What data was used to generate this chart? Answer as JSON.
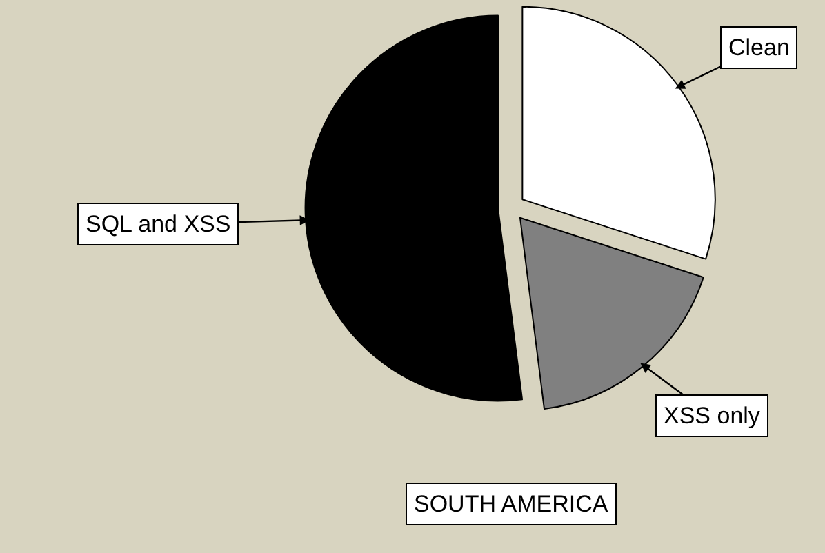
{
  "chart_data": {
    "type": "pie",
    "title": "SOUTH AMERICA",
    "categories": [
      "Clean",
      "XSS only",
      "SQL and XSS"
    ],
    "values": [
      30,
      18,
      52
    ],
    "colors": [
      "#ffffff",
      "#808080",
      "#000000"
    ],
    "legend": false
  }
}
